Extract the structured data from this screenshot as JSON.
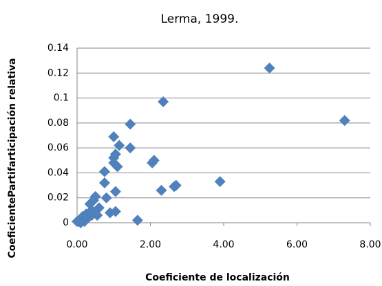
{
  "chart_data": {
    "type": "scatter",
    "title": "Lerma, 1999.",
    "xlabel": "Coeficiente de localización",
    "ylabel": "CoeficientePartifarticipación relativa",
    "color": "#4f81bd",
    "grid": true,
    "xlim": [
      0,
      8
    ],
    "ylim": [
      0,
      0.14
    ],
    "xticks": [
      {
        "value": 0,
        "label": "0.00"
      },
      {
        "value": 2,
        "label": "2.00"
      },
      {
        "value": 4,
        "label": "4.00"
      },
      {
        "value": 6,
        "label": "6.00"
      },
      {
        "value": 8,
        "label": "8.00"
      }
    ],
    "yticks": [
      0,
      0.02,
      0.04,
      0.06,
      0.08,
      0.1,
      0.12,
      0.14
    ],
    "x": [
      5.25,
      7.3,
      2.35,
      1.45,
      1.0,
      1.45,
      1.15,
      1.05,
      1.0,
      1.1,
      1.0,
      0.75,
      0.75,
      2.05,
      2.1,
      3.9,
      2.7,
      2.65,
      2.3,
      1.05,
      0.5,
      0.45,
      0.35,
      0.8,
      0.6,
      0.4,
      1.05,
      0.9,
      0.55,
      0.25,
      0.15,
      0.3,
      0.2,
      0.1,
      0.05,
      0,
      0.1,
      1.65,
      0.2,
      0.4
    ],
    "values": [
      0.124,
      0.082,
      0.097,
      0.079,
      0.069,
      0.06,
      0.062,
      0.055,
      0.052,
      0.045,
      0.048,
      0.041,
      0.032,
      0.048,
      0.05,
      0.033,
      0.03,
      0.029,
      0.026,
      0.025,
      0.021,
      0.018,
      0.015,
      0.02,
      0.012,
      0.01,
      0.009,
      0.008,
      0.006,
      0.007,
      0.005,
      0.004,
      0.003,
      0.002,
      0.001,
      0.001,
      0,
      0.002,
      0.001,
      0.006
    ]
  }
}
